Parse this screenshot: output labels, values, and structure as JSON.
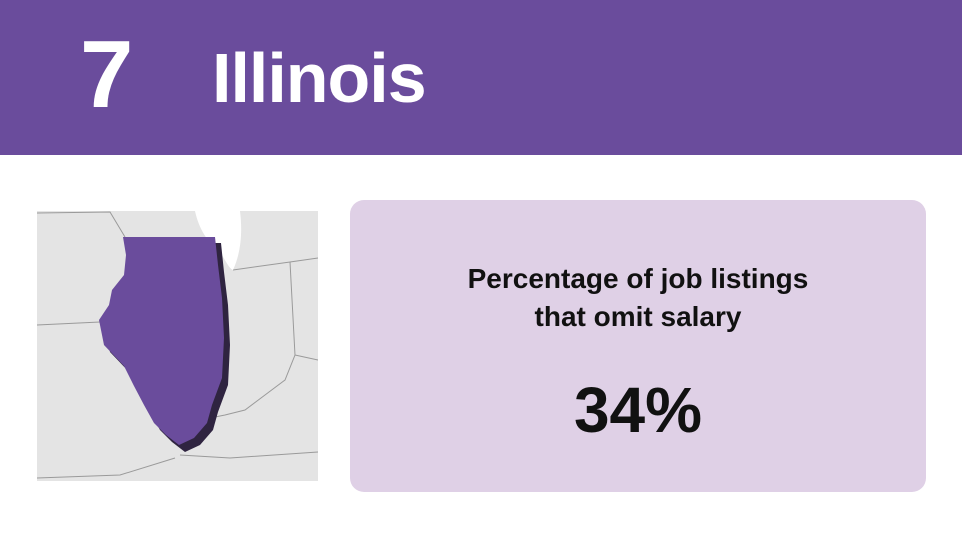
{
  "header": {
    "rank": "7",
    "title": "Illinois"
  },
  "stat": {
    "label_lines": [
      "Percentage of job listings",
      "that omit salary"
    ],
    "value": "34%"
  }
}
